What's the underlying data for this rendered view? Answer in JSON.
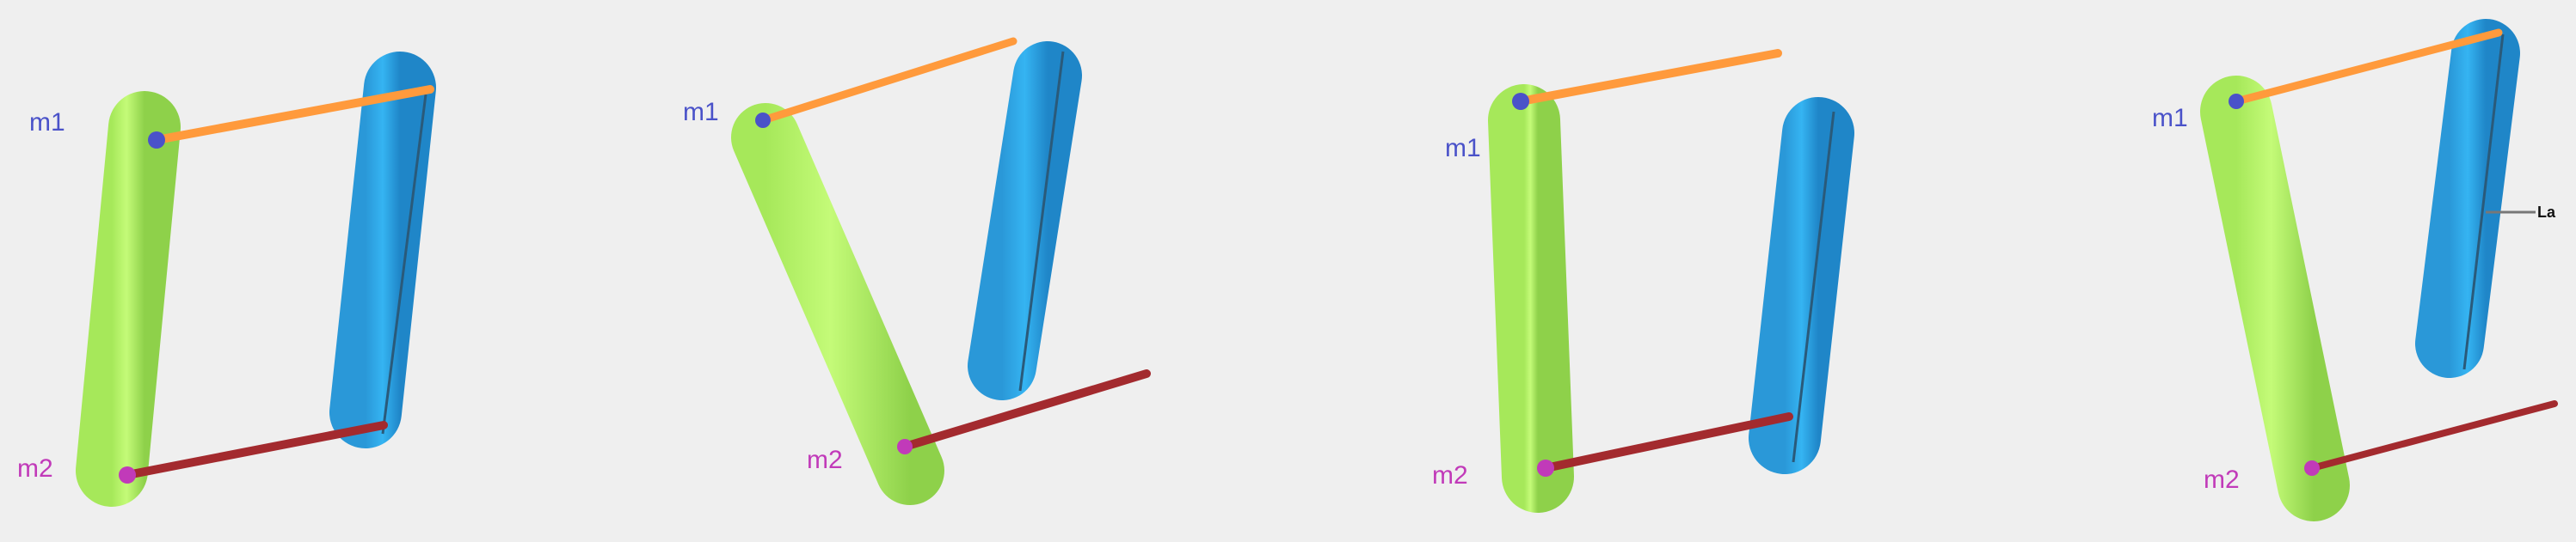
{
  "colors": {
    "background": "#efefef",
    "green_link": "#b6f56a",
    "green_dark": "#8fd94a",
    "blue_link": "#2ea6e6",
    "blue_dark": "#1c7fc0",
    "orange_rod": "#ff9a3c",
    "red_rod": "#a32a2e",
    "m1_color": "#4a52c9",
    "m2_color": "#c13ab9",
    "la_line": "#777777"
  },
  "panels": [
    {
      "id": "panel-1",
      "m1": "m1",
      "m2": "m2"
    },
    {
      "id": "panel-2",
      "m1": "m1",
      "m2": "m2"
    },
    {
      "id": "panel-3",
      "m1": "m1",
      "m2": "m2"
    },
    {
      "id": "panel-4",
      "m1": "m1",
      "m2": "m2",
      "la": "La"
    }
  ]
}
